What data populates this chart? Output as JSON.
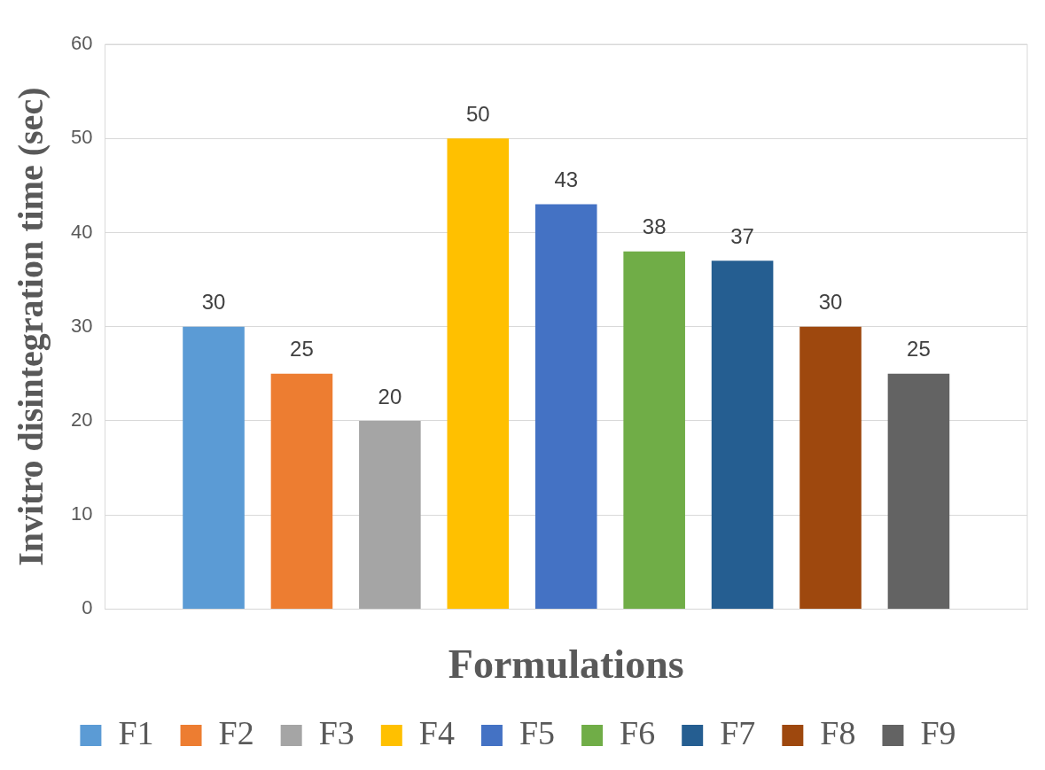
{
  "chart_data": {
    "type": "bar",
    "xlabel": "Formulations",
    "ylabel": "Invitro disintegration time (sec)",
    "categories": [
      null
    ],
    "series": [
      {
        "name": "F1",
        "color": "#5b9bd5",
        "values": [
          30
        ]
      },
      {
        "name": "F2",
        "color": "#ed7d31",
        "values": [
          25
        ]
      },
      {
        "name": "F3",
        "color": "#a5a5a5",
        "values": [
          20
        ]
      },
      {
        "name": "F4",
        "color": "#ffc000",
        "values": [
          50
        ]
      },
      {
        "name": "F5",
        "color": "#4472c4",
        "values": [
          43
        ]
      },
      {
        "name": "F6",
        "color": "#70ad47",
        "values": [
          38
        ]
      },
      {
        "name": "F7",
        "color": "#255e91",
        "values": [
          37
        ]
      },
      {
        "name": "F8",
        "color": "#9e480e",
        "values": [
          30
        ]
      },
      {
        "name": "F9",
        "color": "#636363",
        "values": [
          25
        ]
      }
    ],
    "ylim": [
      0,
      60
    ],
    "yticks": [
      0,
      10,
      20,
      30,
      40,
      50,
      60
    ],
    "grid": "y",
    "legend": "bottom",
    "data_labels": true
  }
}
